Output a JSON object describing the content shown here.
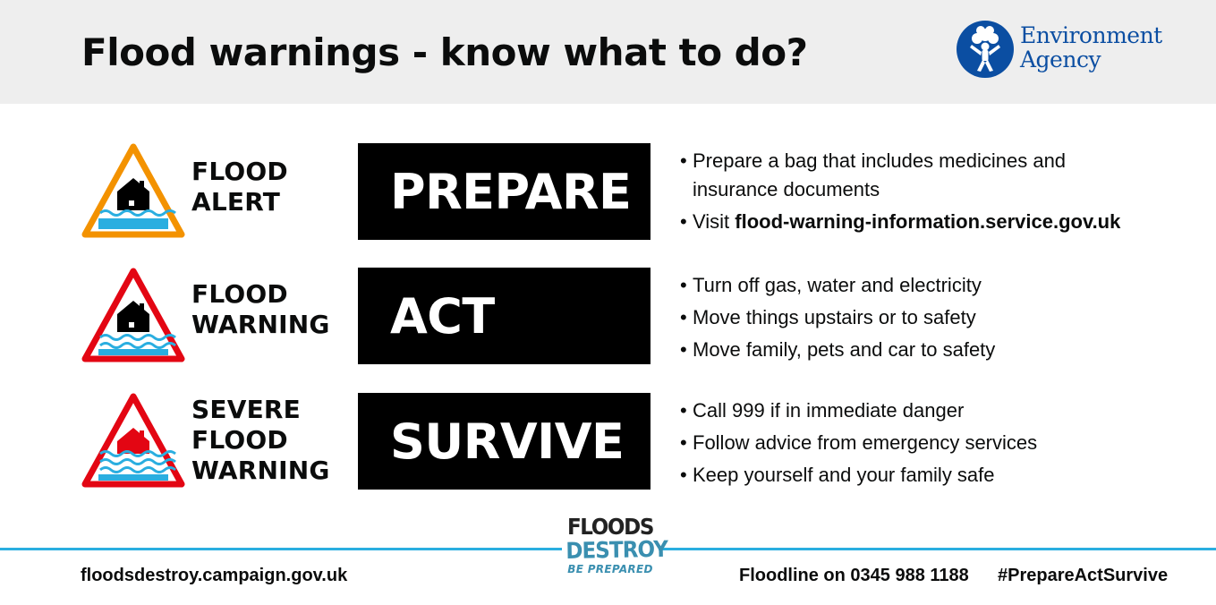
{
  "header": {
    "title": "Flood warnings - know what to do?",
    "logo": {
      "line1": "Environment",
      "line2": "Agency",
      "color": "#0b4ea2"
    }
  },
  "rows": [
    {
      "icon": "flood-alert-sign-icon",
      "border_color": "#f39200",
      "label_lines": [
        "FLOOD",
        "ALERT"
      ],
      "action": "PREPARE",
      "bullets": [
        {
          "text_line1": "Prepare a bag that includes medicines and",
          "text_line2": "insurance documents"
        },
        {
          "prefix": "Visit ",
          "bold": "flood-warning-information.service.gov.uk"
        }
      ]
    },
    {
      "icon": "flood-warning-sign-icon",
      "border_color": "#e30613",
      "label_lines": [
        "FLOOD",
        "WARNING"
      ],
      "action": "ACT",
      "bullets": [
        "Turn off gas, water and electricity",
        "Move things upstairs or to safety",
        "Move family, pets and car to safety"
      ]
    },
    {
      "icon": "severe-flood-warning-sign-icon",
      "border_color": "#e30613",
      "label_lines": [
        "SEVERE",
        "FLOOD",
        "WARNING"
      ],
      "action": "SURVIVE",
      "bullets": [
        "Call 999 if in immediate danger",
        "Follow advice from emergency services",
        "Keep yourself and your family safe"
      ]
    }
  ],
  "footer": {
    "website": "floodsdestroy.campaign.gov.uk",
    "floodline": "Floodline on 0345 988 1188",
    "hashtag": "#PrepareActSurvive",
    "campaign_logo": {
      "line1": "FLOODS",
      "line2": "DESTROY",
      "line3": "BE PREPARED"
    },
    "divider_color": "#2aaee0"
  }
}
